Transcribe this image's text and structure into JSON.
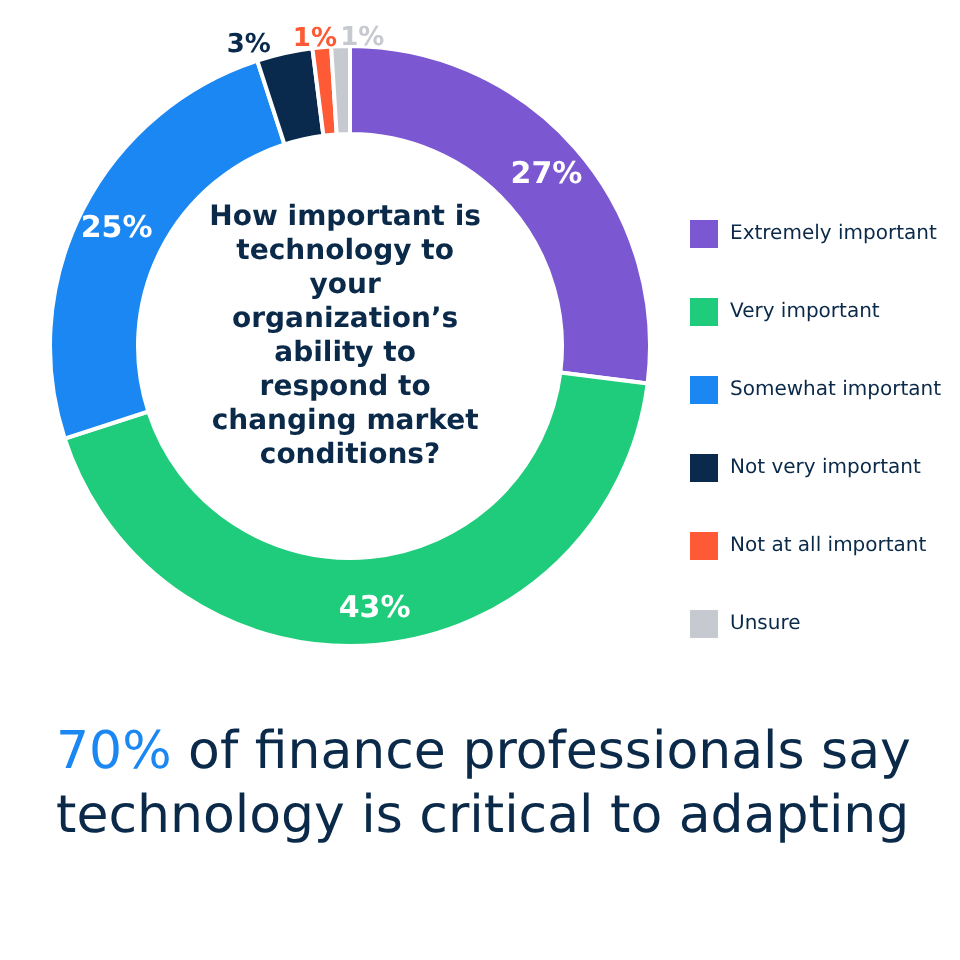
{
  "chart_data": {
    "type": "donut",
    "title": "How important is technology to your organization’s ability to respond to changing market conditions?",
    "categories": [
      "Extremely important",
      "Very important",
      "Somewhat important",
      "Not very important",
      "Not at all important",
      "Unsure"
    ],
    "values": [
      27,
      43,
      25,
      3,
      1,
      1
    ],
    "value_labels": [
      "27%",
      "43%",
      "25%",
      "3%",
      "1%",
      "1%"
    ],
    "colors": [
      "#7b57d1",
      "#1fcc7c",
      "#1b87f2",
      "#0a2a4d",
      "#ff5a36",
      "#c6c9cf"
    ],
    "legend": "right",
    "annotations": [
      "70% of finance professionals say technology is critical to adapting"
    ]
  }
}
